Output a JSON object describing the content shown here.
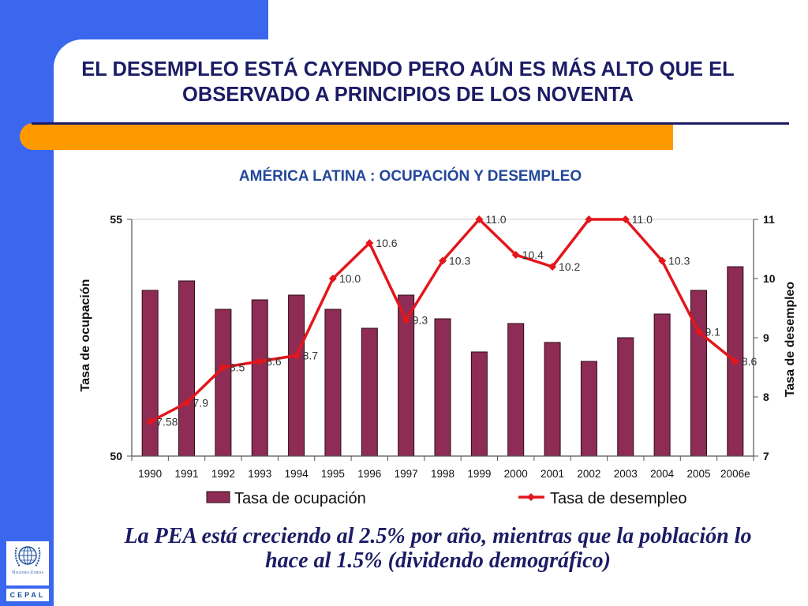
{
  "slide": {
    "title_line1": "EL DESEMPLEO ESTÁ CAYENDO PERO AÚN ES MÁS ALTO QUE EL",
    "title_line2": "OBSERVADO A PRINCIPIOS DE LOS NOVENTA",
    "footnote_line1": "La PEA está creciendo al 2.5% por año, mientras que la población lo",
    "footnote_line2": "hace al 1.5% (dividendo demográfico)",
    "logo": {
      "icon": "un-emblem-icon",
      "org": "Naciones Unidas",
      "name": "CEPAL"
    }
  },
  "colors": {
    "brand_blue": "#3a67ee",
    "accent_orange": "#ff9900",
    "title_navy": "#1c1c66",
    "chart_title_blue": "#23479a",
    "bar_fill": "#8e2c55",
    "line_red": "#e3161c"
  },
  "chart_data": {
    "type": "bar",
    "title": "AMÉRICA LATINA : OCUPACIÓN Y DESEMPLEO",
    "categories": [
      "1990",
      "1991",
      "1992",
      "1993",
      "1994",
      "1995",
      "1996",
      "1997",
      "1998",
      "1999",
      "2000",
      "2001",
      "2002",
      "2003",
      "2004",
      "2005",
      "2006e"
    ],
    "series": [
      {
        "name": "Tasa de ocupación",
        "type": "bar",
        "axis": "left",
        "values": [
          53.5,
          53.7,
          53.1,
          53.3,
          53.4,
          53.1,
          52.7,
          53.4,
          52.9,
          52.2,
          52.8,
          52.4,
          52.0,
          52.5,
          53.0,
          53.5,
          54.0
        ]
      },
      {
        "name": "Tasa de desempleo",
        "type": "line",
        "axis": "right",
        "values": [
          7.58,
          7.9,
          8.5,
          8.6,
          8.7,
          10.0,
          10.6,
          9.3,
          10.3,
          11.0,
          10.4,
          10.2,
          11.0,
          11.0,
          10.3,
          9.1,
          8.6
        ],
        "data_labels": [
          "7.58",
          "7.9",
          "8.5",
          "8.6",
          "8.7",
          "10.0",
          "10.6",
          "9.3",
          "10.3",
          "11.0",
          "10.4",
          "10.2",
          "",
          "11.0",
          "10.3",
          "9.1",
          "8.6"
        ]
      }
    ],
    "ylabel": "Tasa de ocupación",
    "y2label": "Tasa de desempleo",
    "ylim": [
      50,
      55
    ],
    "y_tick_labels": [
      "55",
      "50"
    ],
    "y2lim": [
      7,
      11
    ],
    "y2_tick_labels": [
      "11",
      "10",
      "9",
      "8",
      "7"
    ],
    "grid": false,
    "legend": "bottom"
  }
}
